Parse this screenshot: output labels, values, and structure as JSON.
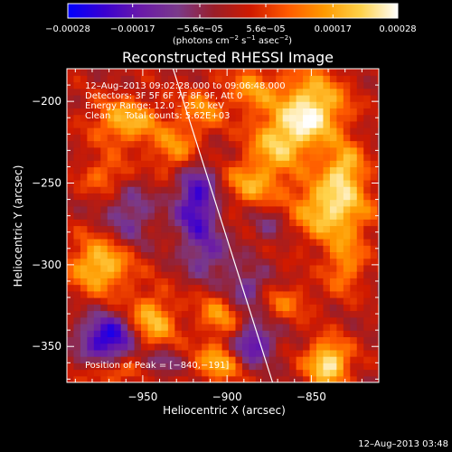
{
  "chart_data": {
    "type": "heatmap",
    "title": "Reconstructed RHESSI Image",
    "xlabel": "Heliocentric X (arcsec)",
    "ylabel": "Heliocentric Y (arcsec)",
    "xlim": [
      -995,
      -810
    ],
    "ylim": [
      -372,
      -180
    ],
    "x_ticks": [
      -950,
      -900,
      -850
    ],
    "x_tick_labels": [
      "−950",
      "−900",
      "−850"
    ],
    "y_ticks": [
      -200,
      -250,
      -300,
      -350
    ],
    "y_tick_labels": [
      "−200",
      "−250",
      "−300",
      "−350"
    ],
    "colorbar": {
      "range": [
        -0.00028,
        0.00028
      ],
      "ticks": [
        -0.00028,
        -0.00017,
        -5.6e-05,
        5.6e-05,
        0.00017,
        0.00028
      ],
      "tick_labels": [
        "−0.00028",
        "−0.00017",
        "−5.6e−05",
        "5.6e−05",
        "0.00017",
        "0.00028"
      ],
      "units_main": "(photons cm",
      "units_sup1": "−2",
      "units_mid": " s",
      "units_sup2": "−1",
      "units_end": " asec",
      "units_sup3": "−2",
      "units_close": ")",
      "colors": [
        "#0000ff",
        "#3a00d0",
        "#6a1aa8",
        "#7a3a8a",
        "#9a1e28",
        "#d01a00",
        "#ff5a00",
        "#ff9a00",
        "#ffd24a",
        "#ffffff"
      ]
    },
    "limb_line": [
      [
        -932,
        -180
      ],
      [
        -873,
        -372
      ]
    ],
    "annotations": {
      "time_range": "12–Aug–2013 09:02:28.000 to 09:06:48.000",
      "detectors": "Detectors: 3F 5F 6F 7F 8F 9F, Att 0",
      "energy_range": "Energy Range: 12.0 – 25.0 keV",
      "clean_counts": "Clean     Total counts: 5.62E+03",
      "peak": "Position of Peak = [−840,−191]"
    },
    "peak": [
      -840,
      -191
    ],
    "hotspots": [
      {
        "x": -850,
        "y": -205,
        "amp": 0.00026,
        "sx": 14,
        "sy": 16
      },
      {
        "x": -838,
        "y": -265,
        "amp": 0.00024,
        "sx": 16,
        "sy": 14
      },
      {
        "x": -870,
        "y": -225,
        "amp": 0.00018,
        "sx": 12,
        "sy": 12
      },
      {
        "x": -960,
        "y": -212,
        "amp": 0.00019,
        "sx": 14,
        "sy": 10
      },
      {
        "x": -930,
        "y": -230,
        "amp": 0.00015,
        "sx": 10,
        "sy": 10
      },
      {
        "x": -972,
        "y": -245,
        "amp": 0.00012,
        "sx": 10,
        "sy": 8
      },
      {
        "x": -885,
        "y": -250,
        "amp": 0.00016,
        "sx": 12,
        "sy": 10
      },
      {
        "x": -975,
        "y": -300,
        "amp": 0.00022,
        "sx": 13,
        "sy": 12
      },
      {
        "x": -945,
        "y": -335,
        "amp": 0.0002,
        "sx": 10,
        "sy": 12
      },
      {
        "x": -903,
        "y": -330,
        "amp": 0.00016,
        "sx": 10,
        "sy": 10
      },
      {
        "x": -870,
        "y": -322,
        "amp": 0.00012,
        "sx": 14,
        "sy": 8
      },
      {
        "x": -905,
        "y": -360,
        "amp": 0.00018,
        "sx": 10,
        "sy": 8
      },
      {
        "x": -840,
        "y": -360,
        "amp": 0.00026,
        "sx": 9,
        "sy": 10
      },
      {
        "x": -830,
        "y": -300,
        "amp": 0.00014,
        "sx": 8,
        "sy": 12
      },
      {
        "x": -830,
        "y": -240,
        "amp": 0.00018,
        "sx": 8,
        "sy": 10
      },
      {
        "x": -915,
        "y": -205,
        "amp": 0.00013,
        "sx": 10,
        "sy": 10
      },
      {
        "x": -965,
        "y": -365,
        "amp": 0.00012,
        "sx": 12,
        "sy": 6
      },
      {
        "x": -885,
        "y": -192,
        "amp": 0.00014,
        "sx": 10,
        "sy": 10
      }
    ],
    "coldspots": [
      {
        "x": -918,
        "y": -262,
        "amp": -0.00022,
        "sx": 9,
        "sy": 18
      },
      {
        "x": -970,
        "y": -345,
        "amp": -0.00026,
        "sx": 12,
        "sy": 10
      },
      {
        "x": -888,
        "y": -318,
        "amp": -0.00018,
        "sx": 10,
        "sy": 10
      },
      {
        "x": -885,
        "y": -348,
        "amp": -0.0002,
        "sx": 9,
        "sy": 9
      },
      {
        "x": -958,
        "y": -270,
        "amp": -0.00012,
        "sx": 10,
        "sy": 14
      },
      {
        "x": -910,
        "y": -295,
        "amp": -0.0001,
        "sx": 10,
        "sy": 10
      },
      {
        "x": -940,
        "y": -360,
        "amp": -0.00012,
        "sx": 8,
        "sy": 6
      },
      {
        "x": -875,
        "y": -275,
        "amp": -8e-05,
        "sx": 8,
        "sy": 8
      }
    ]
  },
  "footer": {
    "timestamp": "12–Aug–2013 03:48"
  }
}
